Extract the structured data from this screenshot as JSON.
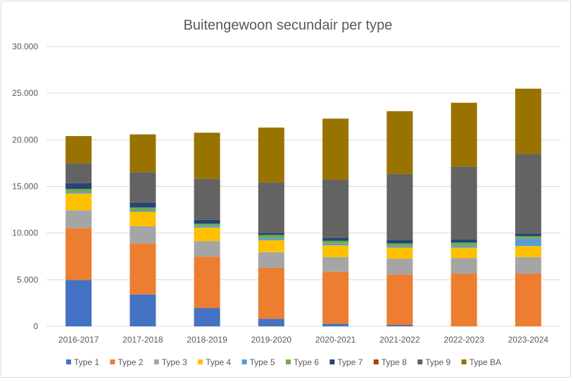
{
  "chart_data": {
    "type": "bar",
    "stacked": true,
    "title": "Buitengewoon secundair per type",
    "xlabel": "",
    "ylabel": "",
    "ylim": [
      0,
      30000
    ],
    "yticks": [
      0,
      5000,
      10000,
      15000,
      20000,
      25000,
      30000
    ],
    "ytick_labels": [
      "0",
      "5.000",
      "10.000",
      "15.000",
      "20.000",
      "25.000",
      "30.000"
    ],
    "grid": true,
    "legend_position": "bottom",
    "categories": [
      "2016-2017",
      "2017-2018",
      "2018-2019",
      "2019-2020",
      "2020-2021",
      "2021-2022",
      "2022-2023",
      "2023-2024"
    ],
    "series": [
      {
        "name": "Type 1",
        "color": "#4472C4",
        "values": [
          4950,
          3420,
          1960,
          810,
          280,
          150,
          0,
          0
        ]
      },
      {
        "name": "Type 2",
        "color": "#ED7D31",
        "values": [
          5580,
          5470,
          5510,
          5480,
          5560,
          5410,
          5660,
          5660
        ]
      },
      {
        "name": "Type 3",
        "color": "#A5A5A5",
        "values": [
          1920,
          1850,
          1660,
          1660,
          1580,
          1690,
          1660,
          1760
        ]
      },
      {
        "name": "Type 4",
        "color": "#FFC000",
        "values": [
          1800,
          1540,
          1460,
          1280,
          1260,
          1180,
          1110,
          1180
        ]
      },
      {
        "name": "Type 5",
        "color": "#5B9BD5",
        "values": [
          150,
          150,
          200,
          200,
          180,
          160,
          230,
          790
        ]
      },
      {
        "name": "Type 6",
        "color": "#70AD47",
        "values": [
          320,
          310,
          210,
          360,
          300,
          300,
          320,
          270
        ]
      },
      {
        "name": "Type 7",
        "color": "#264478",
        "values": [
          630,
          550,
          420,
          250,
          350,
          370,
          360,
          300
        ]
      },
      {
        "name": "Type 8",
        "color": "#9E480E",
        "values": [
          20,
          20,
          20,
          20,
          20,
          20,
          20,
          20
        ]
      },
      {
        "name": "Type 9",
        "color": "#636363",
        "values": [
          2140,
          3220,
          4380,
          5360,
          6190,
          7050,
          7770,
          8490
        ]
      },
      {
        "name": "Type BA",
        "color": "#997300",
        "values": [
          2890,
          4050,
          4940,
          5890,
          6550,
          6740,
          6840,
          7010
        ]
      }
    ]
  }
}
